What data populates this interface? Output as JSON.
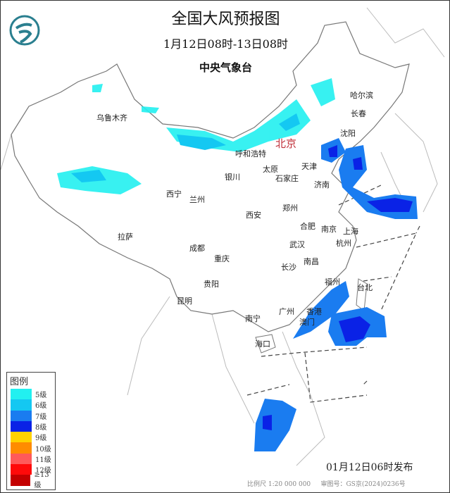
{
  "header": {
    "title": "全国大风预报图",
    "period": "1月12日08时-13日08时",
    "issuer": "中央气象台",
    "logo_icon": "cma-logo-icon"
  },
  "cities": {
    "urumqi": "乌鲁木齐",
    "hohhot": "呼和浩特",
    "beijing": "北京",
    "tianjin": "天津",
    "shenyang": "沈阳",
    "changchun": "长春",
    "harbin": "哈尔滨",
    "yinchuan": "银川",
    "taiyuan": "太原",
    "shijiazhuang": "石家庄",
    "jinan": "济南",
    "xining": "西宁",
    "lanzhou": "兰州",
    "xian": "西安",
    "zhengzhou": "郑州",
    "hefei": "合肥",
    "nanjing": "南京",
    "shanghai": "上海",
    "lhasa": "拉萨",
    "chengdu": "成都",
    "chongqing": "重庆",
    "wuhan": "武汉",
    "hangzhou": "杭州",
    "changsha": "长沙",
    "nanchang": "南昌",
    "fuzhou": "福州",
    "taipei": "台北",
    "guiyang": "贵阳",
    "kunming": "昆明",
    "guangzhou": "广州",
    "hongkong": "香港",
    "macau": "澳门",
    "nanning": "南宁",
    "haikou": "海口"
  },
  "legend": {
    "title": "图例",
    "items": [
      {
        "label": "5级",
        "color": "#22f0f0"
      },
      {
        "label": "6级",
        "color": "#14c8f2"
      },
      {
        "label": "7级",
        "color": "#1a7cf0"
      },
      {
        "label": "8级",
        "color": "#0a22e6"
      },
      {
        "label": "9级",
        "color": "#ffd200"
      },
      {
        "label": "10级",
        "color": "#ff8c00"
      },
      {
        "label": "11级",
        "color": "#ff5a5a"
      },
      {
        "label": "12级",
        "color": "#ff0a0a"
      },
      {
        "label": "≥13级",
        "color": "#c40000"
      }
    ]
  },
  "footer": {
    "issued": "01月12日06时发布",
    "scale": "比例尺 1:20 000 000",
    "approval": "审图号：GS京(2024)0236号"
  }
}
